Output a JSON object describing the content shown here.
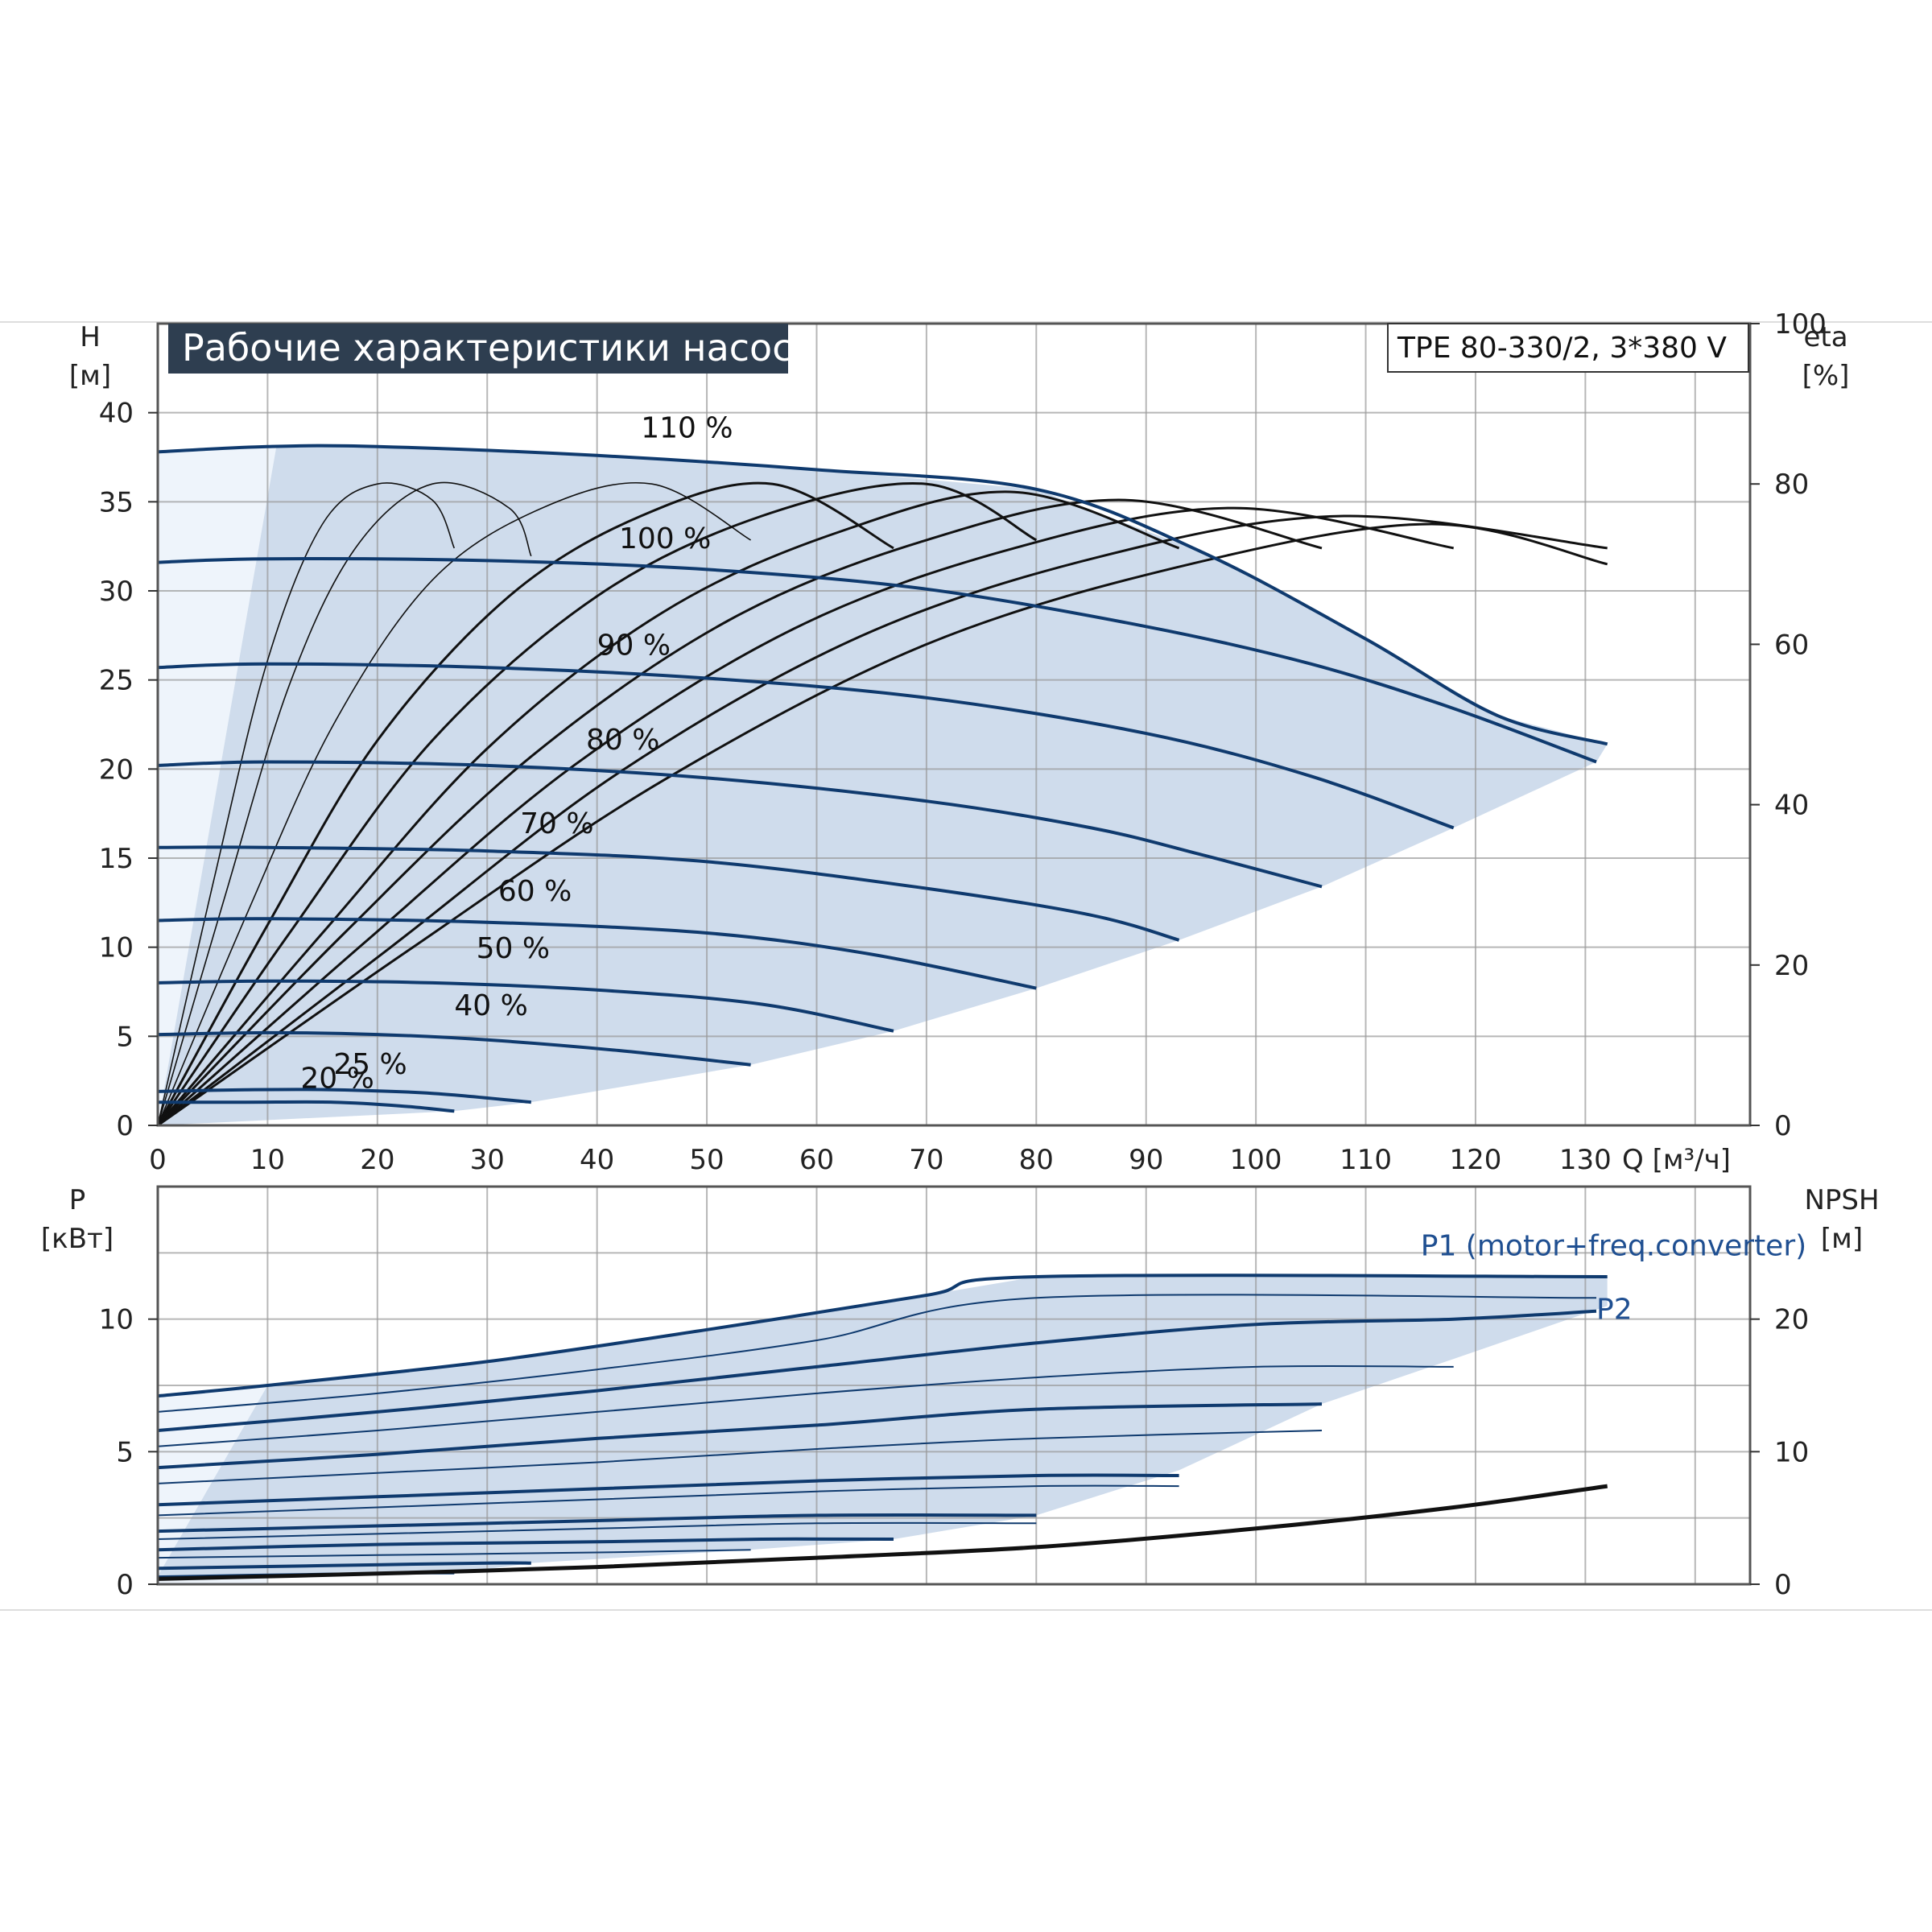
{
  "title": "Рабочие характеристики насоса",
  "model": "TPE 80-330/2, 3*380 V",
  "colors": {
    "curve": "#0f3a6e",
    "shade": "#cfdcec",
    "light_shade": "#eef4fb",
    "efficiency": "#111111",
    "grid": "#9a9a9a",
    "title_bg": "#2e3e50"
  },
  "chart_data": [
    {
      "type": "line",
      "title": "Рабочие характеристики насоса",
      "xlabel": "Q [м³/ч]",
      "ylabel_top": "H",
      "ylabel_bottom": "[м]",
      "y2label_top": "eta",
      "y2label_bottom": "[%]",
      "xlim": [
        0,
        145
      ],
      "ylim": [
        0,
        45
      ],
      "y2lim": [
        0,
        100
      ],
      "x_ticks": [
        "0",
        "10",
        "20",
        "30",
        "40",
        "50",
        "60",
        "70",
        "80",
        "90",
        "100",
        "110",
        "120",
        "130"
      ],
      "y_ticks": [
        "0",
        "5",
        "10",
        "15",
        "20",
        "25",
        "30",
        "35",
        "40"
      ],
      "y2_ticks": [
        "0",
        "20",
        "40",
        "60",
        "80",
        "100"
      ],
      "grid": true,
      "head_curves": [
        {
          "name": "110 %",
          "label_at": [
            44,
            38.6
          ],
          "points": [
            [
              0,
              37.8
            ],
            [
              10,
              38.1
            ],
            [
              20,
              38.1
            ],
            [
              40,
              37.6
            ],
            [
              60,
              36.8
            ],
            [
              80,
              35.7
            ],
            [
              95,
              32.2
            ],
            [
              110,
              27.3
            ],
            [
              122,
              23.0
            ],
            [
              132,
              21.4
            ]
          ]
        },
        {
          "name": "100 %",
          "label_at": [
            42,
            32.4
          ],
          "points": [
            [
              0,
              31.6
            ],
            [
              10,
              31.8
            ],
            [
              30,
              31.7
            ],
            [
              50,
              31.2
            ],
            [
              70,
              30.1
            ],
            [
              90,
              28.0
            ],
            [
              105,
              25.9
            ],
            [
              118,
              23.4
            ],
            [
              131,
              20.4
            ]
          ]
        },
        {
          "name": "90 %",
          "label_at": [
            40,
            26.4
          ],
          "points": [
            [
              0,
              25.7
            ],
            [
              10,
              25.9
            ],
            [
              30,
              25.7
            ],
            [
              50,
              25.1
            ],
            [
              70,
              24.0
            ],
            [
              90,
              22.0
            ],
            [
              105,
              19.6
            ],
            [
              118,
              16.7
            ]
          ]
        },
        {
          "name": "80 %",
          "label_at": [
            39,
            21.1
          ],
          "points": [
            [
              0,
              20.2
            ],
            [
              10,
              20.4
            ],
            [
              30,
              20.2
            ],
            [
              50,
              19.5
            ],
            [
              70,
              18.2
            ],
            [
              85,
              16.7
            ],
            [
              95,
              15.2
            ],
            [
              106,
              13.4
            ]
          ]
        },
        {
          "name": "70 %",
          "label_at": [
            33,
            16.4
          ],
          "points": [
            [
              0,
              15.6
            ],
            [
              10,
              15.6
            ],
            [
              30,
              15.4
            ],
            [
              50,
              14.8
            ],
            [
              70,
              13.3
            ],
            [
              85,
              11.8
            ],
            [
              93,
              10.4
            ]
          ]
        },
        {
          "name": "60 %",
          "label_at": [
            31,
            12.6
          ],
          "points": [
            [
              0,
              11.5
            ],
            [
              10,
              11.6
            ],
            [
              30,
              11.4
            ],
            [
              50,
              10.8
            ],
            [
              65,
              9.6
            ],
            [
              80,
              7.7
            ]
          ]
        },
        {
          "name": "50 %",
          "label_at": [
            29,
            9.4
          ],
          "points": [
            [
              0,
              8.0
            ],
            [
              10,
              8.1
            ],
            [
              25,
              8.0
            ],
            [
              40,
              7.6
            ],
            [
              55,
              6.8
            ],
            [
              67,
              5.3
            ]
          ]
        },
        {
          "name": "40 %",
          "label_at": [
            27,
            6.2
          ],
          "points": [
            [
              0,
              5.1
            ],
            [
              10,
              5.2
            ],
            [
              20,
              5.1
            ],
            [
              30,
              4.8
            ],
            [
              42,
              4.2
            ],
            [
              54,
              3.4
            ]
          ]
        },
        {
          "name": "25 %",
          "label_at": [
            16,
            2.9
          ],
          "points": [
            [
              0,
              1.9
            ],
            [
              8,
              2.0
            ],
            [
              16,
              2.0
            ],
            [
              25,
              1.8
            ],
            [
              34,
              1.3
            ]
          ]
        },
        {
          "name": "20 %",
          "label_at": [
            13,
            2.1
          ],
          "points": [
            [
              0,
              1.3
            ],
            [
              8,
              1.3
            ],
            [
              16,
              1.3
            ],
            [
              22,
              1.1
            ],
            [
              27,
              0.8
            ]
          ]
        }
      ],
      "efficiency_curves": [
        {
          "points": [
            [
              0,
              0
            ],
            [
              5,
              30
            ],
            [
              10,
              58
            ],
            [
              15,
              75
            ],
            [
              20,
              80
            ],
            [
              25,
              78
            ],
            [
              27,
              72
            ]
          ]
        },
        {
          "points": [
            [
              0,
              0
            ],
            [
              6,
              28
            ],
            [
              12,
              55
            ],
            [
              18,
              72
            ],
            [
              25,
              80
            ],
            [
              32,
              77
            ],
            [
              34,
              71
            ]
          ]
        },
        {
          "points": [
            [
              0,
              0
            ],
            [
              8,
              26
            ],
            [
              16,
              50
            ],
            [
              25,
              68
            ],
            [
              35,
              77
            ],
            [
              45,
              80
            ],
            [
              54,
              73
            ]
          ]
        },
        {
          "points": [
            [
              0,
              0
            ],
            [
              10,
              25
            ],
            [
              20,
              48
            ],
            [
              32,
              66
            ],
            [
              44,
              76
            ],
            [
              56,
              80
            ],
            [
              67,
              72
            ]
          ]
        },
        {
          "points": [
            [
              0,
              0
            ],
            [
              12,
              24
            ],
            [
              25,
              48
            ],
            [
              40,
              66
            ],
            [
              55,
              76
            ],
            [
              70,
              80
            ],
            [
              80,
              73
            ]
          ]
        },
        {
          "points": [
            [
              0,
              0
            ],
            [
              15,
              24
            ],
            [
              30,
              47
            ],
            [
              46,
              64
            ],
            [
              62,
              74
            ],
            [
              78,
              79
            ],
            [
              93,
              72
            ]
          ]
        },
        {
          "points": [
            [
              0,
              0
            ],
            [
              17,
              24
            ],
            [
              34,
              46
            ],
            [
              52,
              63
            ],
            [
              70,
              73
            ],
            [
              88,
              78
            ],
            [
              106,
              72
            ]
          ]
        },
        {
          "points": [
            [
              0,
              0
            ],
            [
              19,
              23
            ],
            [
              38,
              45
            ],
            [
              58,
              62
            ],
            [
              78,
              72
            ],
            [
              98,
              77
            ],
            [
              118,
              72
            ]
          ]
        },
        {
          "points": [
            [
              0,
              0
            ],
            [
              21,
              22
            ],
            [
              42,
              44
            ],
            [
              64,
              61
            ],
            [
              86,
              71
            ],
            [
              108,
              76
            ],
            [
              132,
              72
            ]
          ]
        },
        {
          "points": [
            [
              0,
              0
            ],
            [
              23,
              22
            ],
            [
              46,
              43
            ],
            [
              70,
              60
            ],
            [
              94,
              70
            ],
            [
              116,
              75
            ],
            [
              132,
              70
            ]
          ]
        }
      ]
    },
    {
      "type": "line",
      "xlabel": "",
      "ylabel_top": "P",
      "ylabel_bottom": "[кВт]",
      "y2label_top": "NPSH",
      "y2label_bottom": "[м]",
      "xlim": [
        0,
        145
      ],
      "ylim": [
        0,
        15
      ],
      "y2lim": [
        0,
        30
      ],
      "y_ticks": [
        "0",
        "5",
        "10"
      ],
      "y2_ticks": [
        "0",
        "10",
        "20"
      ],
      "grid": true,
      "legend": [
        {
          "name": "P1 (motor+freq.converter)",
          "label_at": [
            115,
            12.4
          ]
        },
        {
          "name": "P2",
          "label_at": [
            131,
            10.0
          ]
        }
      ],
      "power_curves": [
        {
          "points": [
            [
              0,
              7.1
            ],
            [
              10,
              7.5
            ],
            [
              30,
              8.4
            ],
            [
              50,
              9.6
            ],
            [
              70,
              10.9
            ],
            [
              80,
              11.6
            ],
            [
              132,
              11.6
            ]
          ]
        },
        {
          "points": [
            [
              0,
              6.5
            ],
            [
              20,
              7.2
            ],
            [
              40,
              8.1
            ],
            [
              60,
              9.2
            ],
            [
              80,
              10.8
            ],
            [
              131,
              10.8
            ]
          ]
        },
        {
          "points": [
            [
              0,
              5.8
            ],
            [
              20,
              6.5
            ],
            [
              40,
              7.3
            ],
            [
              60,
              8.2
            ],
            [
              80,
              9.1
            ],
            [
              100,
              9.8
            ],
            [
              118,
              10.0
            ],
            [
              131,
              10.3
            ]
          ]
        },
        {
          "points": [
            [
              0,
              5.2
            ],
            [
              20,
              5.8
            ],
            [
              40,
              6.5
            ],
            [
              60,
              7.2
            ],
            [
              80,
              7.8
            ],
            [
              100,
              8.2
            ],
            [
              118,
              8.2
            ]
          ]
        },
        {
          "points": [
            [
              0,
              4.4
            ],
            [
              20,
              4.9
            ],
            [
              40,
              5.5
            ],
            [
              60,
              6.0
            ],
            [
              80,
              6.6
            ],
            [
              106,
              6.8
            ]
          ]
        },
        {
          "points": [
            [
              0,
              3.8
            ],
            [
              20,
              4.2
            ],
            [
              40,
              4.6
            ],
            [
              60,
              5.1
            ],
            [
              80,
              5.5
            ],
            [
              106,
              5.8
            ]
          ]
        },
        {
          "points": [
            [
              0,
              3.0
            ],
            [
              20,
              3.3
            ],
            [
              40,
              3.6
            ],
            [
              60,
              3.9
            ],
            [
              80,
              4.1
            ],
            [
              93,
              4.1
            ]
          ]
        },
        {
          "points": [
            [
              0,
              2.6
            ],
            [
              20,
              2.9
            ],
            [
              40,
              3.2
            ],
            [
              60,
              3.5
            ],
            [
              80,
              3.7
            ],
            [
              93,
              3.7
            ]
          ]
        },
        {
          "points": [
            [
              0,
              2.0
            ],
            [
              20,
              2.2
            ],
            [
              40,
              2.4
            ],
            [
              60,
              2.6
            ],
            [
              80,
              2.6
            ]
          ]
        },
        {
          "points": [
            [
              0,
              1.7
            ],
            [
              20,
              1.9
            ],
            [
              40,
              2.1
            ],
            [
              60,
              2.3
            ],
            [
              80,
              2.3
            ]
          ]
        },
        {
          "points": [
            [
              0,
              1.3
            ],
            [
              20,
              1.5
            ],
            [
              40,
              1.6
            ],
            [
              55,
              1.7
            ],
            [
              67,
              1.7
            ]
          ]
        },
        {
          "points": [
            [
              0,
              1.0
            ],
            [
              20,
              1.1
            ],
            [
              40,
              1.2
            ],
            [
              54,
              1.3
            ]
          ]
        },
        {
          "points": [
            [
              0,
              0.6
            ],
            [
              15,
              0.7
            ],
            [
              30,
              0.8
            ],
            [
              34,
              0.8
            ]
          ]
        },
        {
          "points": [
            [
              0,
              0.3
            ],
            [
              15,
              0.4
            ],
            [
              27,
              0.4
            ]
          ]
        }
      ],
      "npsh_curve": {
        "points": [
          [
            0,
            0.4
          ],
          [
            20,
            0.8
          ],
          [
            40,
            1.3
          ],
          [
            60,
            2.0
          ],
          [
            80,
            2.8
          ],
          [
            100,
            4.2
          ],
          [
            118,
            5.8
          ],
          [
            132,
            7.4
          ]
        ]
      }
    }
  ]
}
